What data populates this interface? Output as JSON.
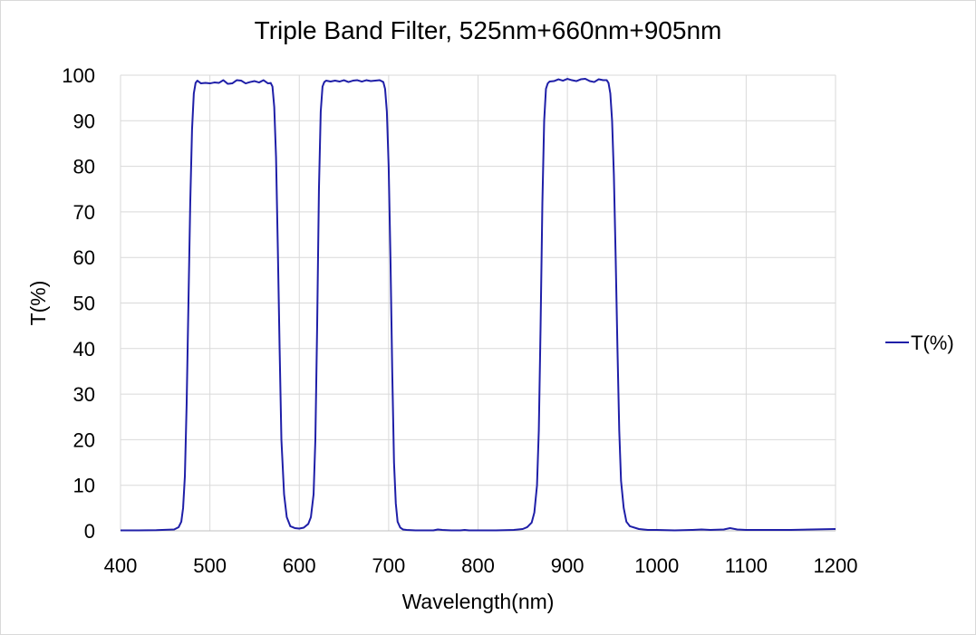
{
  "chart_data": {
    "type": "line",
    "title": "Triple Band Filter, 525nm+660nm+905nm",
    "xlabel": "Wavelength(nm)",
    "ylabel": "T(%)",
    "xlim": [
      400,
      1200
    ],
    "ylim": [
      0,
      100
    ],
    "xticks": [
      400,
      500,
      600,
      700,
      800,
      900,
      1000,
      1100,
      1200
    ],
    "yticks": [
      0,
      10,
      20,
      30,
      40,
      50,
      60,
      70,
      80,
      90,
      100
    ],
    "grid": true,
    "legend_position": "right",
    "series": [
      {
        "name": "T(%)",
        "color": "#1f1fa8",
        "x": [
          400,
          420,
          440,
          460,
          465,
          468,
          470,
          472,
          474,
          476,
          478,
          480,
          482,
          484,
          486,
          488,
          490,
          495,
          500,
          505,
          510,
          515,
          520,
          525,
          530,
          535,
          540,
          545,
          550,
          555,
          560,
          565,
          568,
          570,
          572,
          574,
          576,
          578,
          580,
          583,
          586,
          590,
          595,
          600,
          605,
          610,
          613,
          616,
          618,
          620,
          622,
          624,
          626,
          628,
          630,
          635,
          640,
          645,
          650,
          655,
          660,
          665,
          670,
          675,
          680,
          685,
          690,
          694,
          696,
          698,
          700,
          702,
          704,
          706,
          708,
          710,
          713,
          716,
          720,
          730,
          740,
          750,
          755,
          760,
          770,
          780,
          785,
          790,
          800,
          820,
          840,
          850,
          855,
          860,
          863,
          866,
          868,
          870,
          872,
          874,
          876,
          878,
          880,
          885,
          890,
          895,
          900,
          905,
          910,
          915,
          920,
          925,
          930,
          935,
          940,
          944,
          946,
          948,
          950,
          952,
          954,
          956,
          958,
          960,
          963,
          966,
          970,
          980,
          990,
          1000,
          1020,
          1040,
          1050,
          1060,
          1075,
          1082,
          1090,
          1100,
          1150,
          1200
        ],
        "y": [
          0.1,
          0.1,
          0.15,
          0.3,
          0.8,
          2,
          5,
          12,
          28,
          50,
          72,
          88,
          96,
          98.3,
          98.8,
          98.5,
          98.2,
          98.3,
          98.2,
          98.4,
          98.3,
          98.9,
          98.1,
          98.2,
          98.9,
          98.8,
          98.2,
          98.5,
          98.7,
          98.4,
          98.9,
          98.2,
          98.3,
          97.5,
          93,
          82,
          62,
          40,
          20,
          8,
          3,
          1,
          0.6,
          0.5,
          0.7,
          1.5,
          3,
          8,
          20,
          45,
          75,
          92,
          97.5,
          98.5,
          98.8,
          98.6,
          98.8,
          98.6,
          98.9,
          98.5,
          98.8,
          98.9,
          98.6,
          98.9,
          98.7,
          98.8,
          98.9,
          98.5,
          97,
          92,
          80,
          60,
          35,
          15,
          6,
          2,
          0.7,
          0.3,
          0.2,
          0.1,
          0.1,
          0.1,
          0.3,
          0.2,
          0.1,
          0.1,
          0.2,
          0.1,
          0.1,
          0.1,
          0.2,
          0.4,
          0.8,
          1.8,
          4,
          10,
          22,
          45,
          72,
          90,
          97,
          98.2,
          98.6,
          98.7,
          99.1,
          98.8,
          99.2,
          98.9,
          98.7,
          99.1,
          99.2,
          98.7,
          98.5,
          99.1,
          98.9,
          98.9,
          98.3,
          96,
          90,
          78,
          60,
          40,
          22,
          11,
          5,
          2,
          1,
          0.4,
          0.2,
          0.2,
          0.1,
          0.2,
          0.3,
          0.2,
          0.3,
          0.6,
          0.3,
          0.2,
          0.2,
          0.4
        ]
      }
    ]
  }
}
